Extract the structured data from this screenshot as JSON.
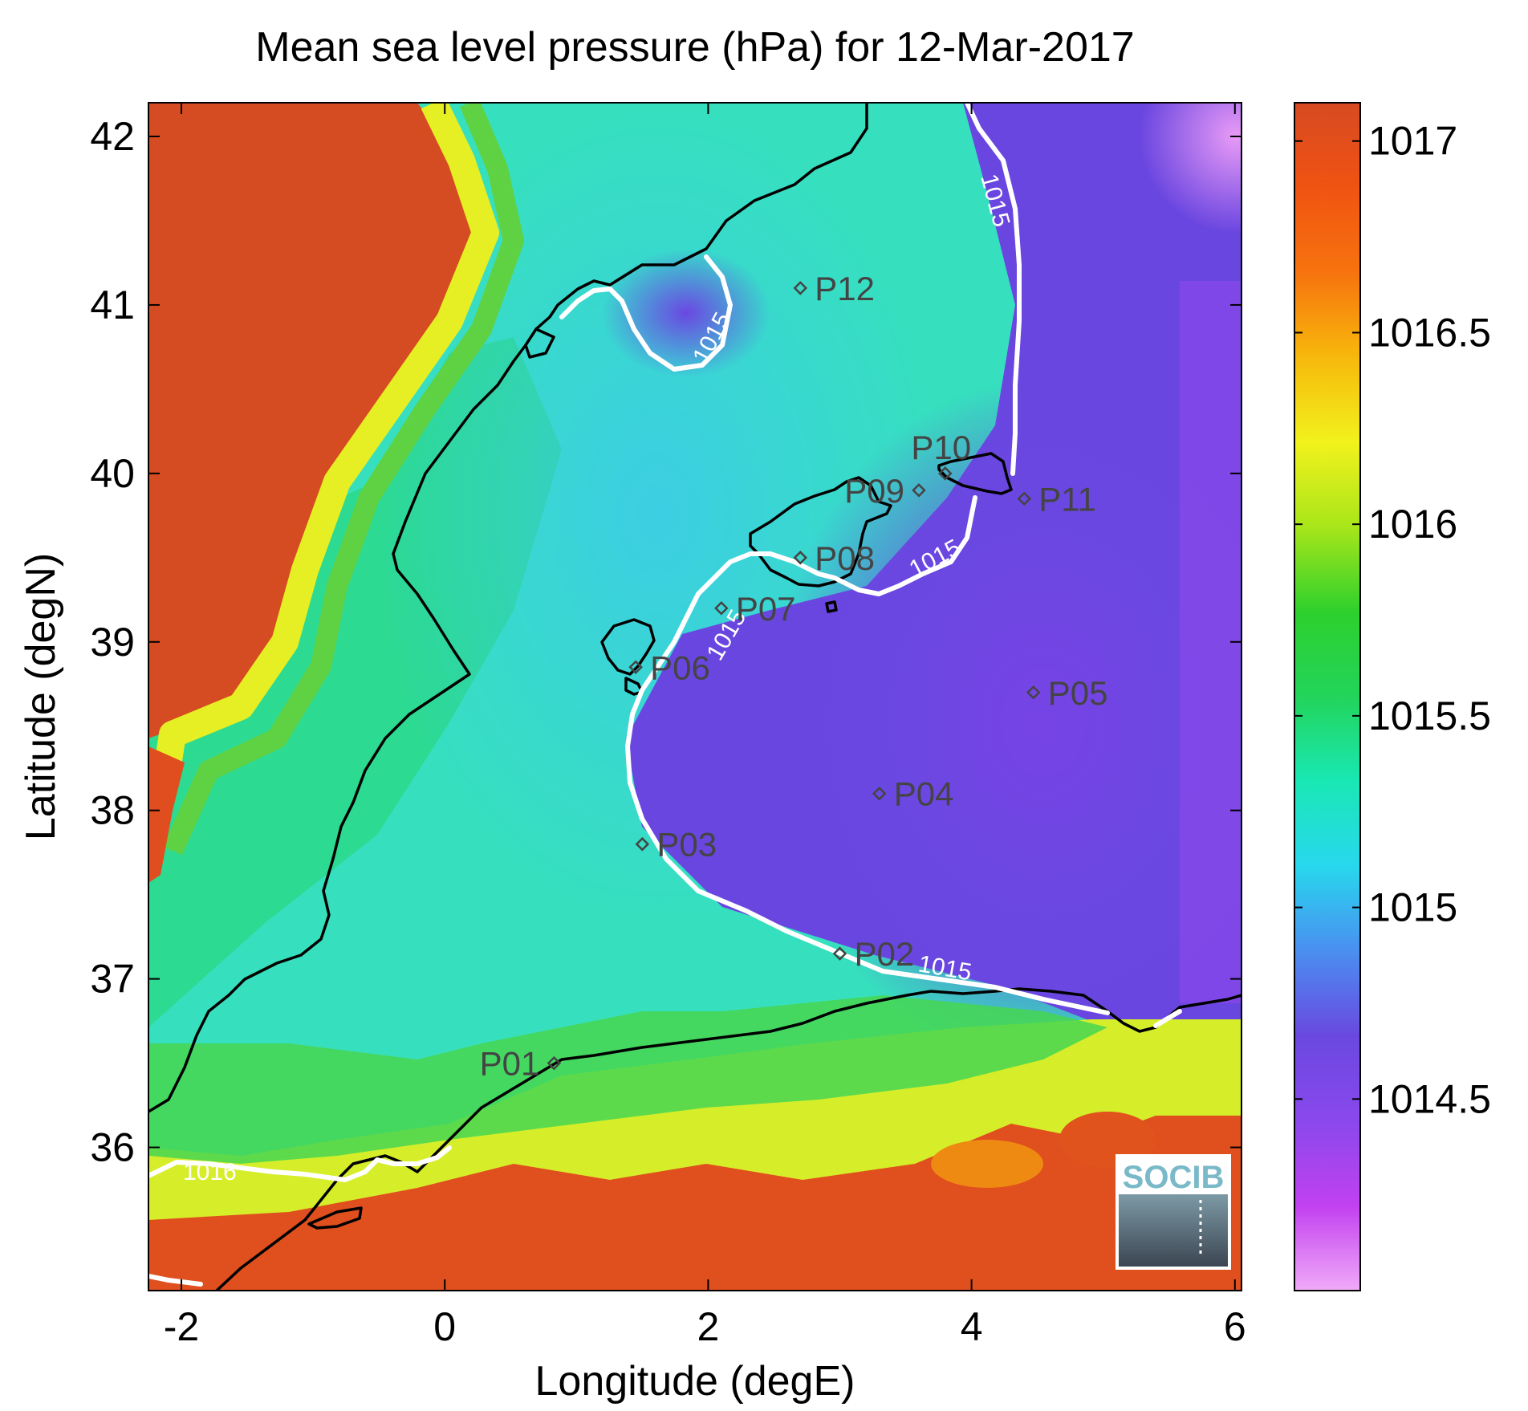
{
  "title": "Mean sea level pressure (hPa) for 12-Mar-2017",
  "xlabel": "Longitude (degE)",
  "ylabel": "Latitude (degN)",
  "x_ticks": [
    {
      "value": -2,
      "label": "-2"
    },
    {
      "value": 0,
      "label": "0"
    },
    {
      "value": 2,
      "label": "2"
    },
    {
      "value": 4,
      "label": "4"
    },
    {
      "value": 6,
      "label": "6"
    }
  ],
  "y_ticks": [
    {
      "value": 36,
      "label": "36"
    },
    {
      "value": 37,
      "label": "37"
    },
    {
      "value": 38,
      "label": "38"
    },
    {
      "value": 39,
      "label": "39"
    },
    {
      "value": 40,
      "label": "40"
    },
    {
      "value": 41,
      "label": "41"
    },
    {
      "value": 42,
      "label": "42"
    }
  ],
  "map_extent": {
    "lon": [
      -2.25,
      6.05
    ],
    "lat": [
      35.15,
      42.2
    ]
  },
  "colorbar": {
    "range": [
      1014,
      1017.1
    ],
    "ticks": [
      {
        "value": 1014.5,
        "label": "1014.5"
      },
      {
        "value": 1015,
        "label": "1015"
      },
      {
        "value": 1015.5,
        "label": "1015.5"
      },
      {
        "value": 1016,
        "label": "1016"
      },
      {
        "value": 1016.5,
        "label": "1016.5"
      },
      {
        "value": 1017,
        "label": "1017"
      }
    ],
    "colors": [
      "#f0aaf8",
      "#c241f0",
      "#8a48ec",
      "#6a48e0",
      "#4a8ff0",
      "#28d7ee",
      "#19e8b4",
      "#22d45a",
      "#2dd02d",
      "#a8e61a",
      "#f2f21c",
      "#f7b80c",
      "#f7730e",
      "#f05312",
      "#d74a22"
    ]
  },
  "contour_labels": [
    "1015",
    "1015",
    "1015",
    "1015",
    "1015",
    "1016"
  ],
  "stations": [
    {
      "id": "P01",
      "lon": 0.83,
      "lat": 36.5,
      "label_side": "left"
    },
    {
      "id": "P02",
      "lon": 3.0,
      "lat": 37.15,
      "label_side": "right"
    },
    {
      "id": "P03",
      "lon": 1.5,
      "lat": 37.8,
      "label_side": "right"
    },
    {
      "id": "P04",
      "lon": 3.3,
      "lat": 38.1,
      "label_side": "right"
    },
    {
      "id": "P05",
      "lon": 4.47,
      "lat": 38.7,
      "label_side": "right"
    },
    {
      "id": "P06",
      "lon": 1.45,
      "lat": 38.85,
      "label_side": "right"
    },
    {
      "id": "P07",
      "lon": 2.1,
      "lat": 39.2,
      "label_side": "right"
    },
    {
      "id": "P08",
      "lon": 2.7,
      "lat": 39.5,
      "label_side": "right"
    },
    {
      "id": "P09",
      "lon": 3.6,
      "lat": 39.9,
      "label_side": "left"
    },
    {
      "id": "P10",
      "lon": 3.8,
      "lat": 40.0,
      "label_side": "above"
    },
    {
      "id": "P11",
      "lon": 4.4,
      "lat": 39.85,
      "label_side": "right"
    },
    {
      "id": "P12",
      "lon": 2.7,
      "lat": 41.1,
      "label_side": "right"
    }
  ],
  "logo_text": "SOCIB"
}
